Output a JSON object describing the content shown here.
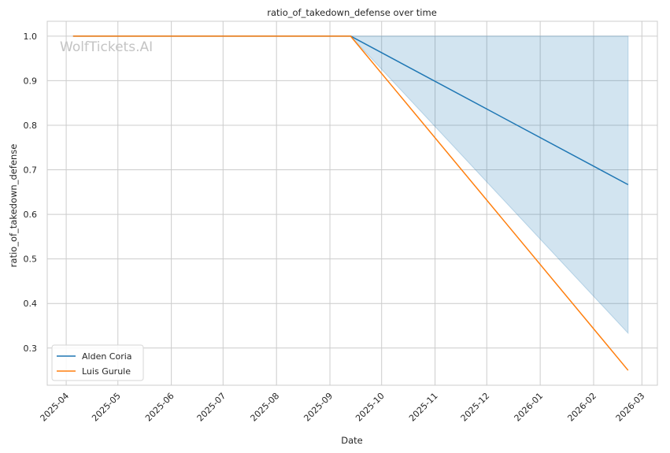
{
  "chart_data": {
    "type": "line",
    "title": "ratio_of_takedown_defense over time",
    "xlabel": "Date",
    "ylabel": "ratio_of_takedown_defense",
    "x_ticks": [
      "2025-04",
      "2025-05",
      "2025-06",
      "2025-07",
      "2025-08",
      "2025-09",
      "2025-10",
      "2025-11",
      "2025-12",
      "2026-01",
      "2026-02",
      "2026-03"
    ],
    "y_ticks": [
      "0.3",
      "0.4",
      "0.5",
      "0.6",
      "0.7",
      "0.8",
      "0.9",
      "1.0"
    ],
    "xlim": [
      "2025-03-21",
      "2026-03-10"
    ],
    "ylim": [
      0.2165,
      1.0333
    ],
    "grid": true,
    "legend_position": "lower-left",
    "watermark": "WolfTickets.AI",
    "series": [
      {
        "name": "Alden Coria",
        "color": "#1f77b4",
        "x": [
          "2025-04-05",
          "2025-09-13",
          "2026-02-21"
        ],
        "y": [
          1.0,
          1.0,
          0.6667
        ],
        "band": {
          "color": "#1f77b4",
          "x": [
            "2025-09-13",
            "2026-02-21"
          ],
          "lower": [
            1.0,
            0.3333
          ],
          "upper": [
            1.0,
            1.0
          ]
        }
      },
      {
        "name": "Luis Gurule",
        "color": "#ff7f0e",
        "x": [
          "2025-04-05",
          "2025-09-13",
          "2026-02-21"
        ],
        "y": [
          1.0,
          1.0,
          0.25
        ]
      }
    ]
  }
}
